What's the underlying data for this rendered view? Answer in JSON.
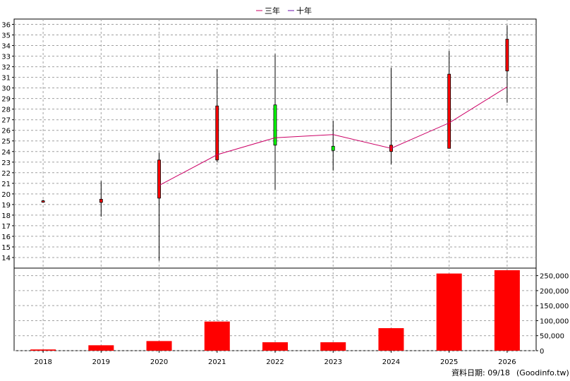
{
  "chart_data": [
    {
      "type": "candlestick",
      "legend": [
        {
          "label": "三年",
          "color": "#cc0066"
        },
        {
          "label": "十年",
          "color": "#6a0dad"
        }
      ],
      "categories": [
        "2018",
        "2019",
        "2020",
        "2021",
        "2022",
        "2023",
        "2024",
        "2025",
        "2026"
      ],
      "ohlc": [
        {
          "year": "2018",
          "open": 19.25,
          "high": 19.45,
          "low": 19.2,
          "close": 19.35
        },
        {
          "year": "2019",
          "open": 19.2,
          "high": 21.2,
          "low": 17.85,
          "close": 19.5
        },
        {
          "year": "2020",
          "open": 19.6,
          "high": 23.9,
          "low": 13.7,
          "close": 23.2
        },
        {
          "year": "2021",
          "open": 23.2,
          "high": 31.8,
          "low": 23.0,
          "close": 28.3
        },
        {
          "year": "2022",
          "open": 28.4,
          "high": 33.2,
          "low": 20.4,
          "close": 24.6
        },
        {
          "year": "2023",
          "open": 24.5,
          "high": 26.9,
          "low": 22.2,
          "close": 24.1
        },
        {
          "year": "2024",
          "open": 24.0,
          "high": 31.9,
          "low": 22.8,
          "close": 24.6
        },
        {
          "year": "2025",
          "open": 24.3,
          "high": 33.5,
          "low": 24.3,
          "close": 31.3
        },
        {
          "year": "2026",
          "open": 31.6,
          "high": 35.9,
          "low": 28.6,
          "close": 34.6
        }
      ],
      "series": [
        {
          "name": "三年",
          "values": [
            null,
            null,
            20.8,
            23.7,
            25.3,
            25.6,
            24.3,
            26.7,
            30.1
          ]
        }
      ],
      "ylim": [
        13,
        36.5
      ],
      "yticks": [
        14,
        15,
        16,
        17,
        18,
        19,
        20,
        21,
        22,
        23,
        24,
        25,
        26,
        27,
        28,
        29,
        30,
        31,
        32,
        33,
        34,
        35,
        36
      ],
      "grid": true
    },
    {
      "type": "bar",
      "categories": [
        "2018",
        "2019",
        "2020",
        "2021",
        "2022",
        "2023",
        "2024",
        "2025",
        "2026"
      ],
      "values": [
        4000,
        18000,
        32000,
        97000,
        28000,
        28000,
        75000,
        257000,
        268000
      ],
      "ylim": [
        0,
        275000
      ],
      "yticks": [
        "0",
        "50,000",
        "100,000",
        "150,000",
        "200,000",
        "250,000"
      ],
      "color": "#ff0000",
      "grid": true
    }
  ],
  "footer": {
    "label": "資料日期: 09/18",
    "source": "(Goodinfo.tw)"
  }
}
